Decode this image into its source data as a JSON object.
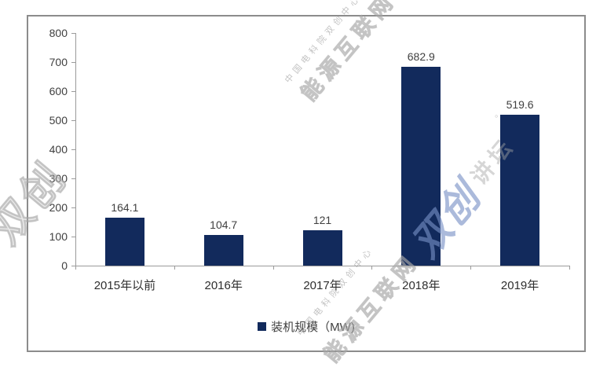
{
  "watermarks": {
    "org_small": "中国电科院双创中心",
    "brand_large": "能源互联网",
    "logo_text": "双创",
    "forum_text": "讲坛",
    "reg_mark": "°",
    "gray_color": "#a3a3a3",
    "blue_color": "#788fc5"
  },
  "chart_data": {
    "type": "bar",
    "title": "",
    "categories": [
      "2015年以前",
      "2016年",
      "2017年",
      "2018年",
      "2019年"
    ],
    "values": [
      164.1,
      104.7,
      121,
      682.9,
      519.6
    ],
    "value_labels": [
      "164.1",
      "104.7",
      "121",
      "682.9",
      "519.6"
    ],
    "series": [
      {
        "name": "装机规模（MW)",
        "values": [
          164.1,
          104.7,
          121,
          682.9,
          519.6
        ]
      }
    ],
    "legend_label": "装机规模（MW)",
    "legend_position": "bottom",
    "xlabel": "",
    "ylabel": "",
    "ylim": [
      0,
      800
    ],
    "yticks": [
      0,
      100,
      200,
      300,
      400,
      500,
      600,
      700,
      800
    ],
    "grid": false,
    "bar_color": "#122a5c",
    "axis_color": "#9b9b9b",
    "label_color": "#3f3f3f"
  }
}
